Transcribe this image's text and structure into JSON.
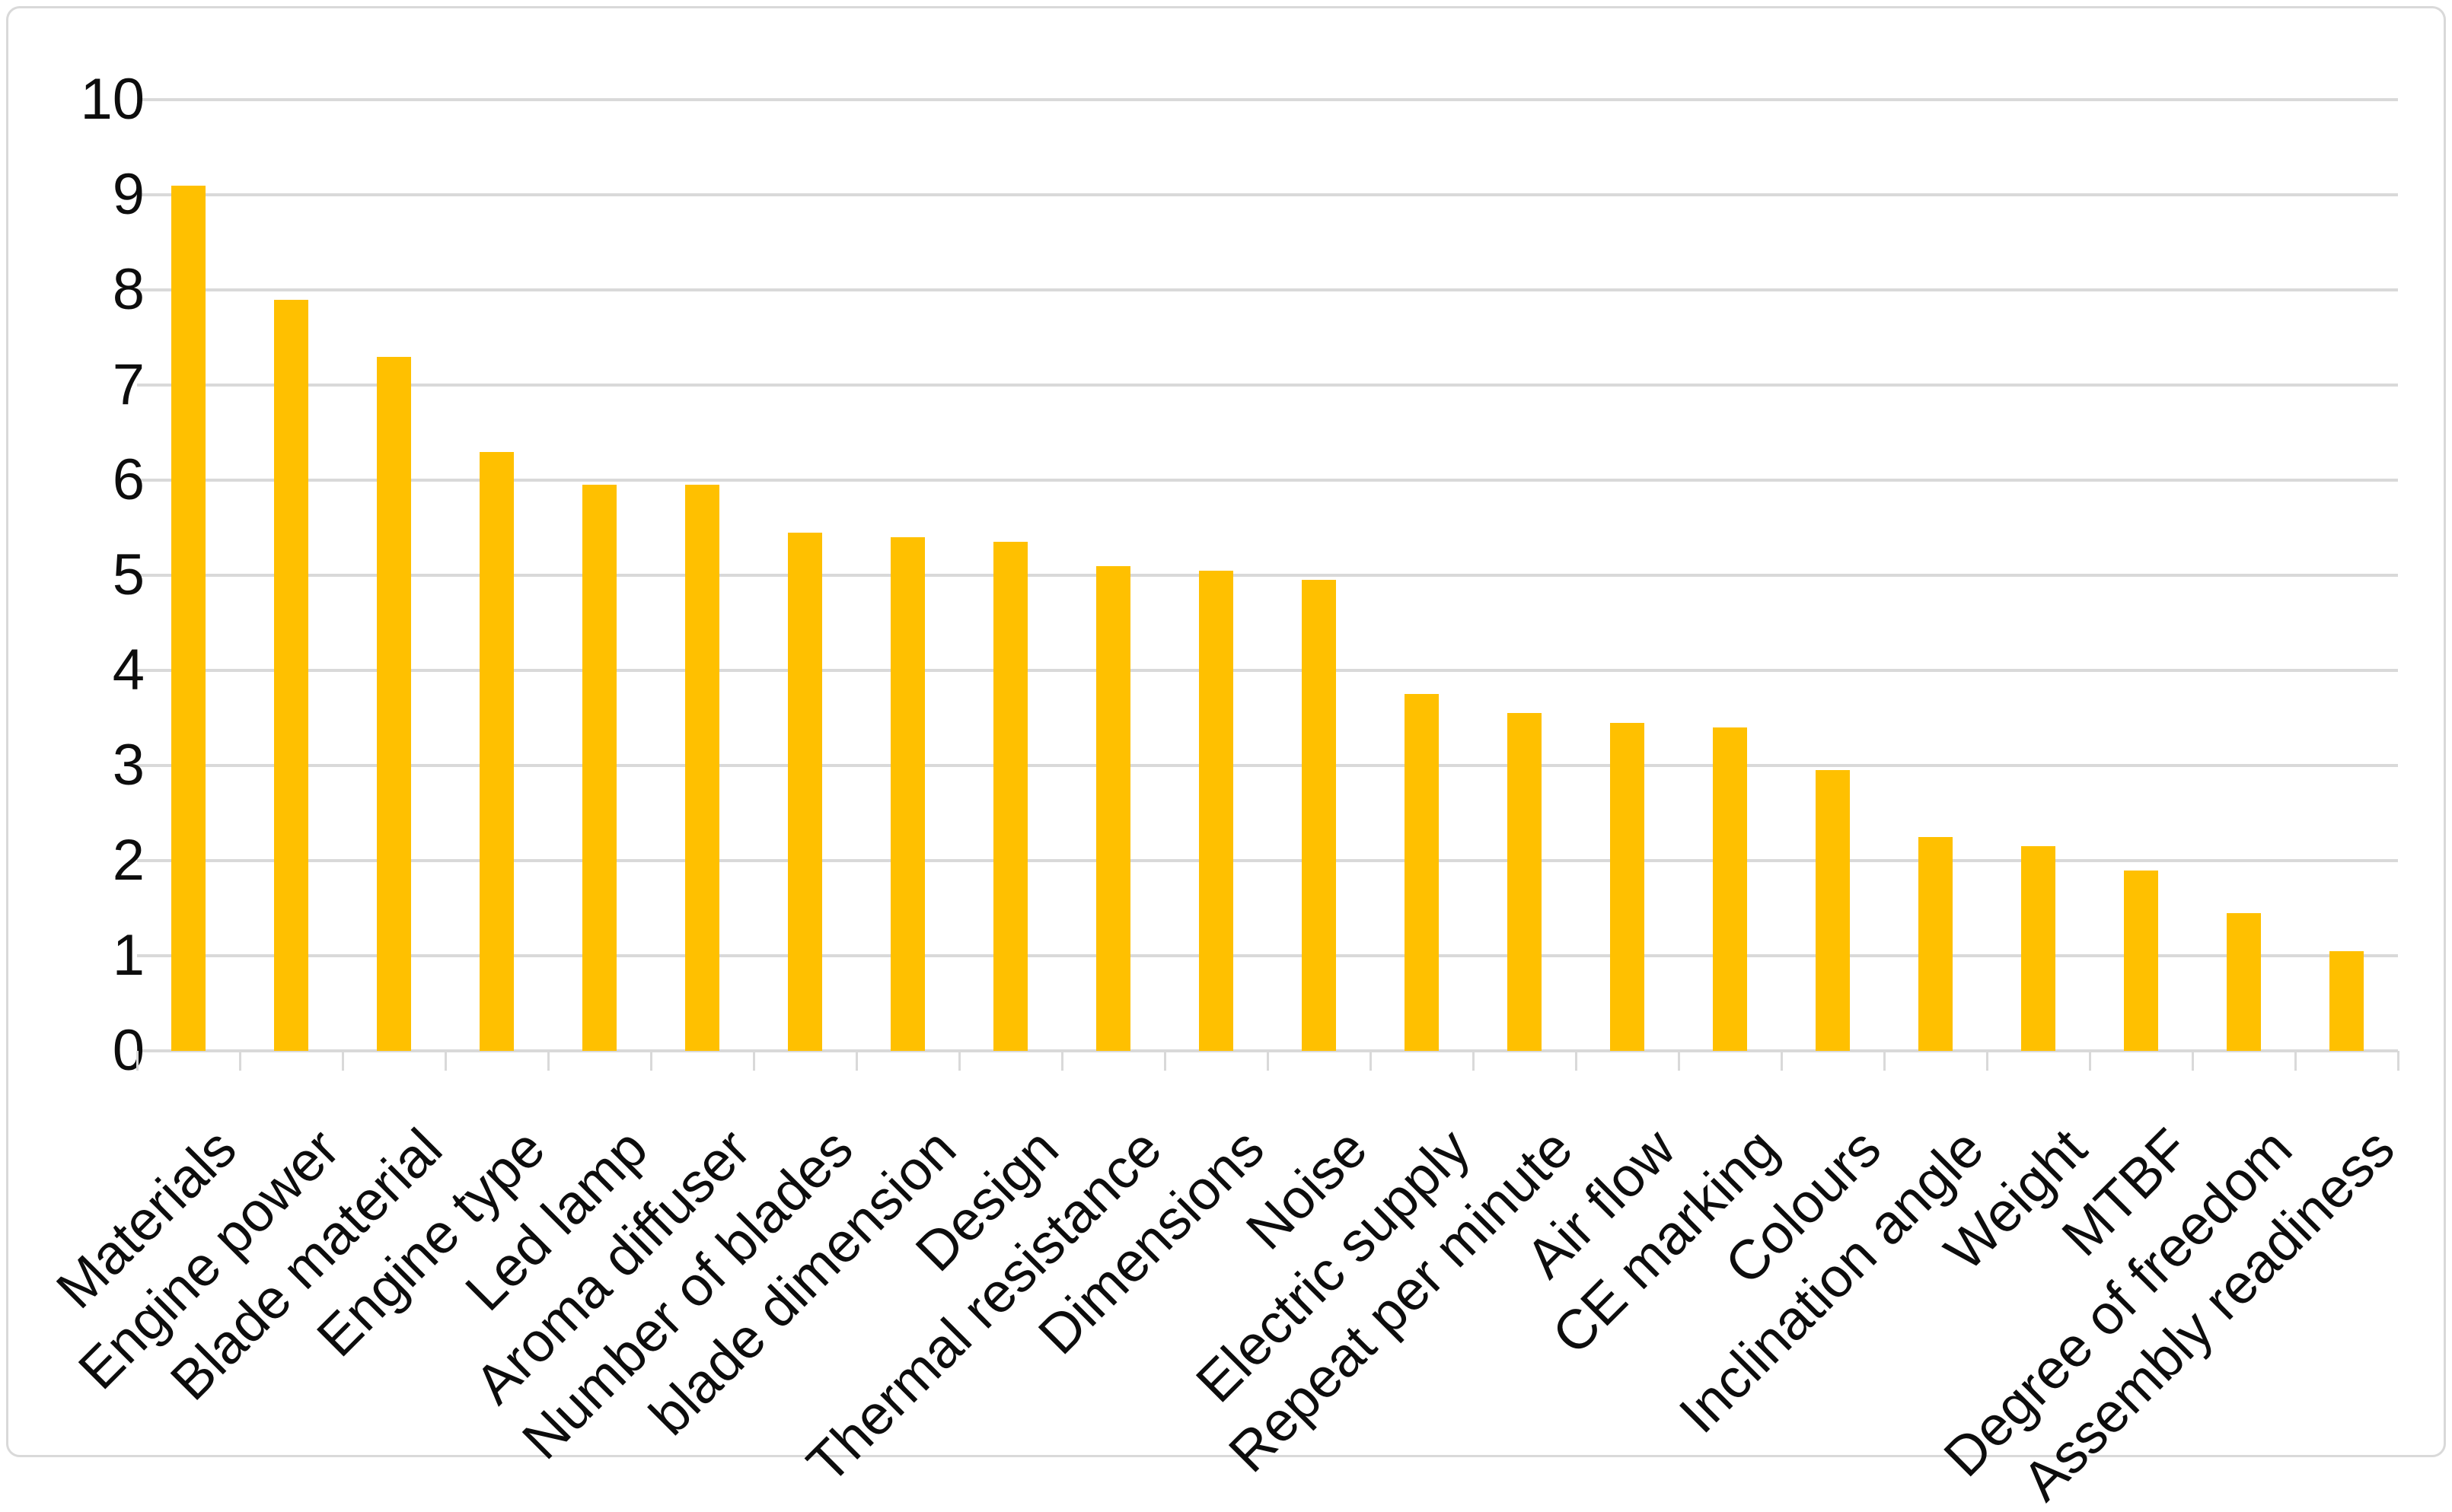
{
  "chart_data": {
    "type": "bar",
    "title": "",
    "xlabel": "",
    "ylabel": "",
    "categories": [
      "Materials",
      "Engine power",
      "Blade material",
      "Engine type",
      "Led lamp",
      "Aroma diffuser",
      "Number of blades",
      "blade dimension",
      "Design",
      "Thermal resistance",
      "Dimensions",
      "Noise",
      "Electric supply",
      "Repeat per minute",
      "Air flow",
      "CE marking",
      "Colours",
      "Inclination angle",
      "Weight",
      "MTBF",
      "Degree of freedom",
      "Assembly readiness"
    ],
    "values": [
      9.1,
      7.9,
      7.3,
      6.3,
      5.95,
      5.95,
      5.45,
      5.4,
      5.35,
      5.1,
      5.05,
      4.95,
      3.75,
      3.55,
      3.45,
      3.4,
      2.95,
      2.25,
      2.15,
      1.9,
      1.45,
      1.05
    ],
    "ylim": [
      0,
      10
    ],
    "y_ticks": [
      0,
      1,
      2,
      3,
      4,
      5,
      6,
      7,
      8,
      9,
      10
    ],
    "grid": true,
    "legend": false,
    "bar_color": "#FFC000"
  },
  "colors": {
    "bar": "#FFC000",
    "gridline": "#D9D9D9",
    "axis_line": "#D9D9D9",
    "tick": "#D9D9D9",
    "text": "#0D0D0D",
    "frame_border": "#D9D9D9",
    "background": "#FFFFFF"
  }
}
